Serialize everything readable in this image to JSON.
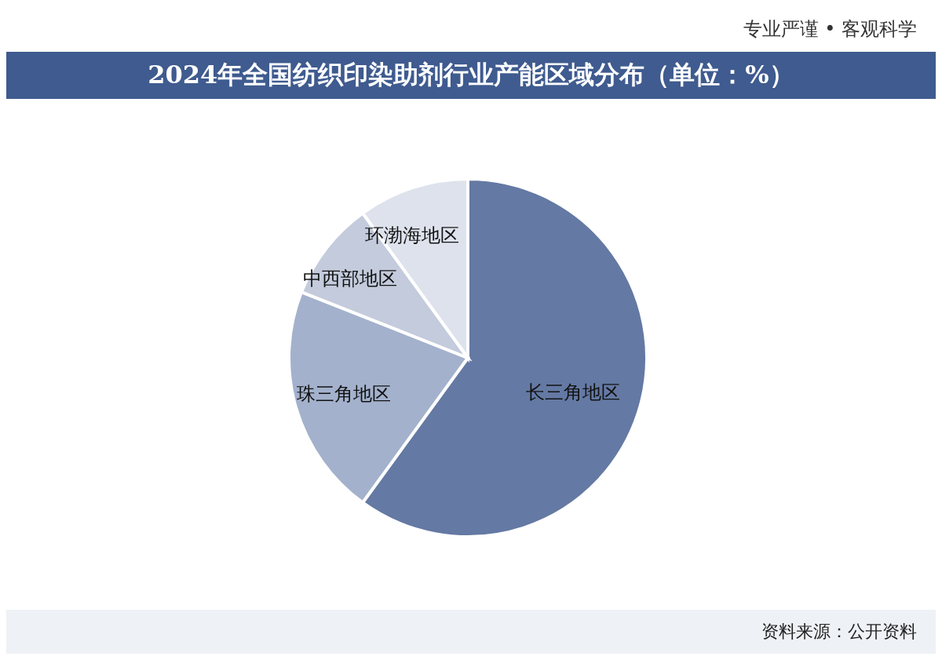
{
  "chart_data": {
    "type": "pie",
    "title": "2024年全国纺织印染助剂行业产能区域分布（单位：%）",
    "categories": [
      "长三角地区",
      "珠三角地区",
      "中西部地区",
      "环渤海地区"
    ],
    "values": [
      60,
      21,
      9,
      10
    ],
    "colors": [
      "#6479a3",
      "#a3b1cc",
      "#c3cbdc",
      "#dde2ec"
    ],
    "legend": false,
    "annotations": [
      "专业严谨 • 客观科学",
      "资料来源：公开资料"
    ]
  }
}
